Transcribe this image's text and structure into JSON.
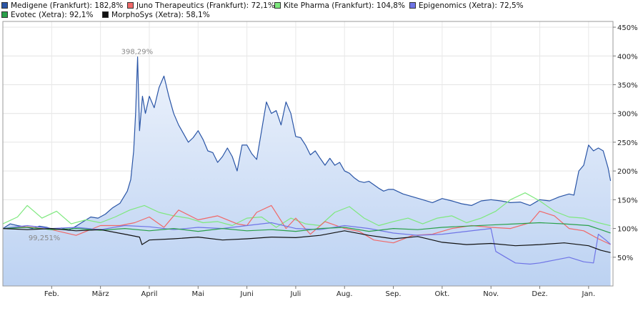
{
  "chart_data": {
    "type": "line",
    "legend": [
      {
        "name": "Medigene (Frankfurt): 182,8%",
        "color": "#2a55a6"
      },
      {
        "name": "Juno Therapeutics (Frankfurt): 72,1%",
        "color": "#f06868"
      },
      {
        "name": "Kite Pharma (Frankfurt): 104,8%",
        "color": "#7ee87e"
      },
      {
        "name": "Epigenomics (Xetra): 72,5%",
        "color": "#6f74e6"
      },
      {
        "name": "Evotec (Xetra): 92,1%",
        "color": "#2aa04a"
      },
      {
        "name": "MorphoSys (Xetra): 58,1%",
        "color": "#111111"
      }
    ],
    "y_ticks": [
      "450%",
      "400%",
      "350%",
      "300%",
      "250%",
      "200%",
      "150%",
      "100%",
      "50%"
    ],
    "y_tick_values": [
      450,
      400,
      350,
      300,
      250,
      200,
      150,
      100,
      50
    ],
    "ylim": [
      0,
      460
    ],
    "x_ticks": [
      "Feb.",
      "März",
      "April",
      "Mai",
      "Juni",
      "Juli",
      "Aug.",
      "Sep.",
      "Okt.",
      "Nov.",
      "Dez.",
      "Jan."
    ],
    "x_tick_values": [
      1,
      2,
      3,
      4,
      5,
      6,
      7,
      8,
      9,
      10,
      11,
      12
    ],
    "xlim": [
      0,
      12.5
    ],
    "annotations": [
      {
        "text": "398,29%",
        "x": 2.75,
        "y": 398.3
      },
      {
        "text": "99,251%",
        "x": 0.85,
        "y": 99.3
      }
    ],
    "series": [
      {
        "name": "Medigene",
        "color": "#2a55a6",
        "fill": true,
        "x": [
          0,
          0.15,
          0.3,
          0.45,
          0.6,
          0.75,
          0.9,
          1.05,
          1.2,
          1.35,
          1.5,
          1.65,
          1.8,
          1.95,
          2.1,
          2.25,
          2.4,
          2.55,
          2.62,
          2.68,
          2.72,
          2.76,
          2.8,
          2.86,
          2.92,
          3.0,
          3.1,
          3.2,
          3.3,
          3.4,
          3.5,
          3.6,
          3.7,
          3.8,
          3.9,
          4.0,
          4.1,
          4.2,
          4.3,
          4.4,
          4.5,
          4.6,
          4.7,
          4.8,
          4.9,
          5.0,
          5.1,
          5.2,
          5.3,
          5.4,
          5.5,
          5.6,
          5.7,
          5.8,
          5.9,
          6.0,
          6.1,
          6.2,
          6.3,
          6.4,
          6.5,
          6.6,
          6.7,
          6.8,
          6.9,
          7.0,
          7.1,
          7.2,
          7.3,
          7.4,
          7.5,
          7.6,
          7.7,
          7.8,
          7.9,
          8.0,
          8.2,
          8.4,
          8.6,
          8.8,
          9.0,
          9.2,
          9.4,
          9.6,
          9.8,
          10.0,
          10.2,
          10.4,
          10.6,
          10.8,
          11.0,
          11.2,
          11.4,
          11.6,
          11.7,
          11.8,
          11.9,
          12.0,
          12.1,
          12.2,
          12.3,
          12.4,
          12.45
        ],
        "y": [
          100,
          108,
          105,
          103,
          100,
          104,
          102,
          98,
          101,
          97,
          104,
          112,
          120,
          118,
          125,
          136,
          144,
          165,
          185,
          235,
          300,
          398.3,
          270,
          330,
          300,
          330,
          310,
          345,
          365,
          330,
          300,
          280,
          265,
          250,
          258,
          270,
          255,
          235,
          232,
          215,
          225,
          240,
          225,
          200,
          245,
          245,
          230,
          220,
          270,
          320,
          300,
          305,
          280,
          320,
          300,
          260,
          258,
          245,
          228,
          235,
          222,
          210,
          222,
          210,
          215,
          200,
          196,
          188,
          182,
          180,
          182,
          176,
          170,
          165,
          168,
          168,
          160,
          155,
          150,
          145,
          152,
          148,
          143,
          140,
          148,
          150,
          148,
          145,
          146,
          140,
          150,
          148,
          155,
          160,
          158,
          200,
          210,
          245,
          235,
          240,
          235,
          205,
          182.8
        ]
      },
      {
        "name": "Juno Therapeutics",
        "color": "#f06868",
        "fill": false,
        "x": [
          0,
          0.5,
          1.0,
          1.5,
          2.0,
          2.4,
          2.7,
          3.0,
          3.3,
          3.6,
          4.0,
          4.4,
          4.8,
          5.0,
          5.2,
          5.5,
          5.8,
          6.0,
          6.3,
          6.6,
          7.0,
          7.3,
          7.6,
          8.0,
          8.4,
          8.8,
          9.2,
          9.6,
          10.0,
          10.4,
          10.8,
          11.0,
          11.3,
          11.6,
          11.9,
          12.2,
          12.45
        ],
        "y": [
          100,
          103,
          98,
          88,
          105,
          105,
          110,
          120,
          102,
          132,
          115,
          122,
          108,
          105,
          128,
          140,
          100,
          118,
          90,
          112,
          100,
          95,
          80,
          75,
          88,
          90,
          100,
          105,
          102,
          100,
          110,
          130,
          122,
          100,
          96,
          82,
          72.1
        ]
      },
      {
        "name": "Kite Pharma",
        "color": "#7ee87e",
        "fill": false,
        "x": [
          0,
          0.3,
          0.5,
          0.8,
          1.1,
          1.4,
          1.7,
          2.0,
          2.3,
          2.6,
          2.9,
          3.2,
          3.5,
          3.8,
          4.1,
          4.4,
          4.7,
          5.0,
          5.3,
          5.6,
          5.9,
          6.2,
          6.5,
          6.8,
          7.1,
          7.4,
          7.7,
          8.0,
          8.3,
          8.6,
          8.9,
          9.2,
          9.5,
          9.8,
          10.1,
          10.4,
          10.7,
          11.0,
          11.3,
          11.6,
          11.9,
          12.2,
          12.45
        ],
        "y": [
          108,
          120,
          140,
          118,
          130,
          108,
          115,
          110,
          120,
          132,
          140,
          128,
          122,
          118,
          110,
          112,
          105,
          118,
          120,
          102,
          118,
          108,
          105,
          128,
          138,
          118,
          105,
          112,
          118,
          108,
          118,
          122,
          110,
          118,
          130,
          150,
          162,
          148,
          130,
          120,
          118,
          110,
          104.8
        ]
      },
      {
        "name": "Epigenomics",
        "color": "#6f74e6",
        "fill": false,
        "x": [
          0,
          0.5,
          1.0,
          1.5,
          2.0,
          2.5,
          3.0,
          3.5,
          4.0,
          4.5,
          5.0,
          5.5,
          6.0,
          6.5,
          7.0,
          7.5,
          8.0,
          8.5,
          9.0,
          9.5,
          10.0,
          10.1,
          10.3,
          10.5,
          10.8,
          11.0,
          11.3,
          11.6,
          11.9,
          12.1,
          12.2,
          12.35,
          12.45
        ],
        "y": [
          100,
          105,
          100,
          102,
          98,
          105,
          103,
          98,
          102,
          100,
          105,
          110,
          100,
          98,
          105,
          100,
          92,
          88,
          90,
          95,
          100,
          60,
          50,
          40,
          38,
          40,
          45,
          50,
          42,
          40,
          90,
          80,
          72.5
        ]
      },
      {
        "name": "Evotec",
        "color": "#2aa04a",
        "fill": false,
        "x": [
          0,
          0.5,
          1.0,
          1.5,
          2.0,
          2.5,
          3.0,
          3.5,
          4.0,
          4.5,
          5.0,
          5.5,
          6.0,
          6.5,
          7.0,
          7.5,
          8.0,
          8.5,
          9.0,
          9.5,
          10.0,
          10.5,
          11.0,
          11.5,
          12.0,
          12.25,
          12.45
        ],
        "y": [
          100,
          102,
          98,
          100,
          97,
          100,
          96,
          100,
          95,
          100,
          96,
          98,
          95,
          100,
          102,
          95,
          100,
          98,
          102,
          104,
          106,
          108,
          110,
          108,
          105,
          98,
          92.1
        ]
      },
      {
        "name": "MorphoSys",
        "color": "#111111",
        "fill": false,
        "x": [
          0,
          0.5,
          1.0,
          1.5,
          2.0,
          2.5,
          2.8,
          2.85,
          3.0,
          3.5,
          4.0,
          4.5,
          5.0,
          5.5,
          6.0,
          6.5,
          7.0,
          7.5,
          8.0,
          8.5,
          9.0,
          9.5,
          10.0,
          10.5,
          11.0,
          11.5,
          12.0,
          12.25,
          12.45
        ],
        "y": [
          100,
          98,
          100,
          96,
          98,
          90,
          85,
          72,
          80,
          82,
          85,
          80,
          82,
          85,
          84,
          88,
          96,
          88,
          82,
          86,
          76,
          72,
          74,
          70,
          72,
          75,
          70,
          62,
          58.1
        ]
      }
    ]
  }
}
